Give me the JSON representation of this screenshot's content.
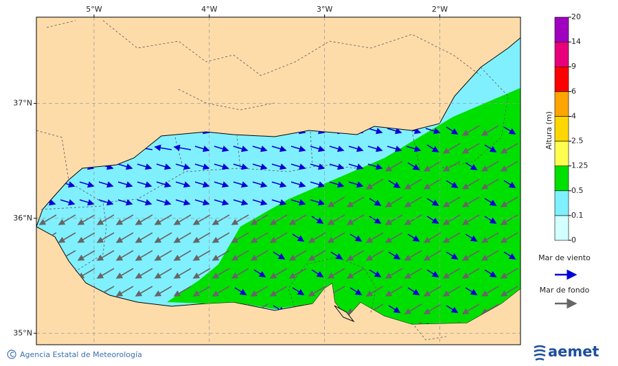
{
  "map": {
    "xlim": [
      -5.5,
      -1.3
    ],
    "ylim": [
      34.9,
      37.75
    ],
    "xticks": [
      {
        "value": -5,
        "label": "5°W"
      },
      {
        "value": -4,
        "label": "4°W"
      },
      {
        "value": -3,
        "label": "3°W"
      },
      {
        "value": -2,
        "label": "2°W"
      }
    ],
    "yticks": [
      {
        "value": 37,
        "label": "37°N"
      },
      {
        "value": 36,
        "label": "36°N"
      },
      {
        "value": 35,
        "label": "35°N"
      }
    ]
  },
  "legend": {
    "title": "Altura (m)",
    "levels": [
      0,
      0.1,
      0.5,
      1.25,
      2.5,
      4,
      6,
      9,
      14,
      20
    ],
    "colors": [
      "#d2ffff",
      "#80f0ff",
      "#00e000",
      "#ffff50",
      "#ffd700",
      "#ffa500",
      "#ff0000",
      "#e8007a",
      "#a000c0"
    ]
  },
  "arrows": [
    {
      "label": "Mar de viento",
      "color": "#0000d8"
    },
    {
      "label": "Mar de fondo",
      "color": "#666666"
    }
  ],
  "footer": {
    "credit": "Agencia Estatal de Meteorología",
    "logo": "aemet"
  }
}
